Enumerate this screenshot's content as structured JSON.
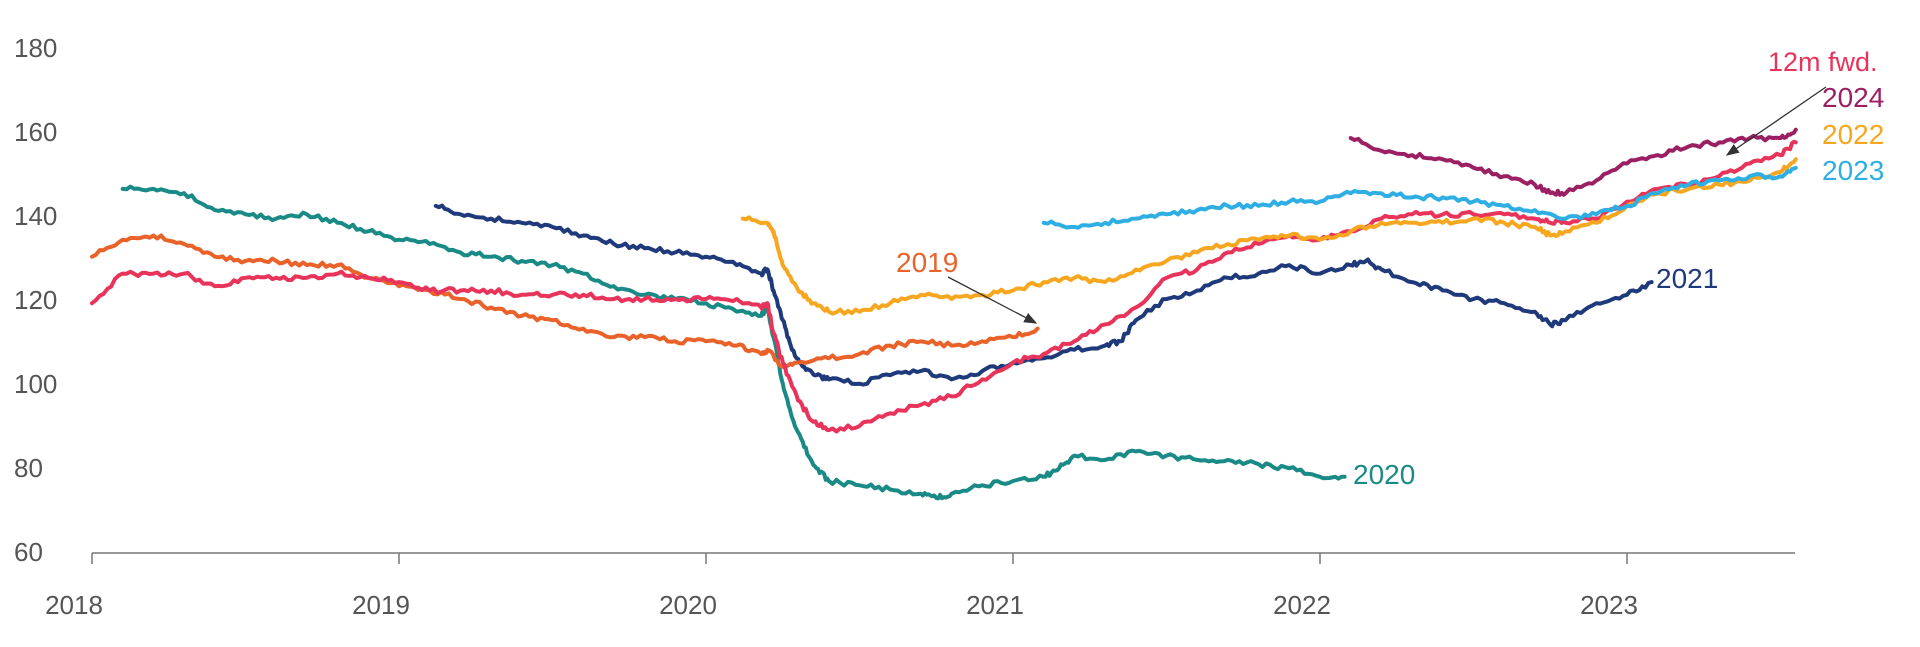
{
  "chart_data": {
    "type": "line",
    "title": "",
    "xlabel": "",
    "ylabel": "",
    "xlim": [
      2018.0,
      2023.55
    ],
    "ylim": [
      60,
      180
    ],
    "grid": false,
    "x_ticks": [
      2018,
      2019,
      2020,
      2021,
      2022,
      2023
    ],
    "x_tick_labels": [
      "2018",
      "2019",
      "2020",
      "2021",
      "2022",
      "2023"
    ],
    "y_ticks": [
      60,
      80,
      100,
      120,
      140,
      160,
      180
    ],
    "y_tick_labels": [
      "60",
      "80",
      "100",
      "120",
      "140",
      "160",
      "180"
    ],
    "series": [
      {
        "name": "2020",
        "label": "2020",
        "color": "#1a8a86",
        "x": [
          2018.1,
          2018.2,
          2018.3,
          2018.4,
          2018.5,
          2018.6,
          2018.7,
          2018.8,
          2018.9,
          2019.0,
          2019.1,
          2019.2,
          2019.3,
          2019.4,
          2019.5,
          2019.6,
          2019.7,
          2019.8,
          2019.9,
          2020.0,
          2020.1,
          2020.18,
          2020.2,
          2020.22,
          2020.25,
          2020.28,
          2020.32,
          2020.36,
          2020.4,
          2020.5,
          2020.6,
          2020.7,
          2020.75,
          2020.8,
          2020.9,
          2021.0,
          2021.1,
          2021.15,
          2021.2,
          2021.3,
          2021.4,
          2021.5,
          2021.6,
          2021.7,
          2021.8,
          2021.9,
          2022.0,
          2022.08
        ],
        "y": [
          146,
          146,
          145,
          141,
          140,
          139,
          140,
          138,
          136,
          134,
          133,
          131,
          130,
          129,
          128,
          126,
          123,
          121,
          120,
          119,
          117,
          116,
          118,
          111,
          100,
          92,
          85,
          80,
          77,
          76,
          75,
          74,
          73,
          74,
          76,
          77,
          78,
          80,
          83,
          82,
          84,
          83,
          82,
          82,
          81,
          80,
          78,
          78
        ]
      },
      {
        "name": "2021",
        "label": "2021",
        "color": "#1f3a7a",
        "x": [
          2019.12,
          2019.2,
          2019.3,
          2019.4,
          2019.5,
          2019.6,
          2019.7,
          2019.8,
          2019.9,
          2020.0,
          2020.1,
          2020.18,
          2020.2,
          2020.22,
          2020.25,
          2020.28,
          2020.32,
          2020.36,
          2020.4,
          2020.5,
          2020.6,
          2020.7,
          2020.8,
          2020.9,
          2021.0,
          2021.1,
          2021.2,
          2021.3,
          2021.35,
          2021.4,
          2021.5,
          2021.6,
          2021.7,
          2021.8,
          2021.9,
          2022.0,
          2022.1,
          2022.15,
          2022.2,
          2022.3,
          2022.4,
          2022.5,
          2022.6,
          2022.7,
          2022.75,
          2022.8,
          2022.9,
          2023.0,
          2023.08
        ],
        "y": [
          142,
          140,
          139,
          138,
          137,
          135,
          133,
          132,
          131,
          130,
          128,
          126,
          127,
          122,
          115,
          108,
          104,
          102,
          101,
          100,
          102,
          103,
          101,
          103,
          105,
          106,
          108,
          109,
          110,
          115,
          120,
          122,
          125,
          126,
          128,
          126,
          128,
          129,
          127,
          124,
          122,
          120,
          119,
          117,
          114,
          115,
          119,
          121,
          124
        ]
      },
      {
        "name": "2019",
        "label": "2019",
        "color": "#e8622a",
        "x": [
          2018.0,
          2018.1,
          2018.2,
          2018.3,
          2018.4,
          2018.5,
          2018.6,
          2018.7,
          2018.8,
          2018.9,
          2019.0,
          2019.1,
          2019.2,
          2019.3,
          2019.4,
          2019.5,
          2019.6,
          2019.7,
          2019.8,
          2019.9,
          2020.0,
          2020.1,
          2020.18,
          2020.2,
          2020.25,
          2020.3,
          2020.4,
          2020.5,
          2020.6,
          2020.7,
          2020.8,
          2020.9,
          2021.0,
          2021.08
        ],
        "y": [
          130,
          134,
          135,
          133,
          130,
          129,
          129,
          128,
          128,
          125,
          123,
          122,
          120,
          118,
          116,
          115,
          113,
          111,
          111,
          110,
          110,
          109,
          107,
          108,
          104,
          105,
          106,
          107,
          109,
          110,
          109,
          110,
          111,
          113
        ]
      },
      {
        "name": "12m fwd.",
        "label": "12m fwd.",
        "color": "#e8345a",
        "x": [
          2018.0,
          2018.1,
          2018.2,
          2018.3,
          2018.4,
          2018.5,
          2018.6,
          2018.7,
          2018.8,
          2018.9,
          2019.0,
          2019.1,
          2019.2,
          2019.3,
          2019.4,
          2019.5,
          2019.6,
          2019.7,
          2019.8,
          2019.9,
          2020.0,
          2020.1,
          2020.18,
          2020.2,
          2020.22,
          2020.25,
          2020.3,
          2020.35,
          2020.4,
          2020.5,
          2020.6,
          2020.7,
          2020.8,
          2020.9,
          2021.0,
          2021.1,
          2021.2,
          2021.3,
          2021.4,
          2021.5,
          2021.6,
          2021.7,
          2021.8,
          2021.9,
          2022.0,
          2022.1,
          2022.2,
          2022.3,
          2022.4,
          2022.5,
          2022.6,
          2022.7,
          2022.75,
          2022.8,
          2022.9,
          2023.0,
          2023.1,
          2023.2,
          2023.3,
          2023.4,
          2023.5,
          2023.55
        ],
        "y": [
          119,
          126,
          126,
          126,
          123,
          125,
          125,
          125,
          126,
          125,
          124,
          122,
          122,
          122,
          121,
          121,
          121,
          120,
          120,
          120,
          120,
          120,
          118,
          119,
          112,
          105,
          96,
          91,
          89,
          90,
          93,
          95,
          97,
          101,
          105,
          107,
          110,
          114,
          118,
          125,
          127,
          131,
          133,
          135,
          134,
          136,
          139,
          140,
          140,
          140,
          140,
          139,
          138,
          138,
          139,
          143,
          146,
          147,
          149,
          152,
          154,
          157
        ]
      },
      {
        "name": "2022",
        "label": "2022",
        "color": "#f6a71f",
        "x": [
          2020.12,
          2020.2,
          2020.22,
          2020.25,
          2020.3,
          2020.35,
          2020.4,
          2020.5,
          2020.6,
          2020.7,
          2020.8,
          2020.9,
          2021.0,
          2021.1,
          2021.2,
          2021.3,
          2021.4,
          2021.5,
          2021.6,
          2021.7,
          2021.8,
          2021.9,
          2022.0,
          2022.1,
          2022.2,
          2022.3,
          2022.4,
          2022.5,
          2022.6,
          2022.7,
          2022.75,
          2022.8,
          2022.9,
          2023.0,
          2023.1,
          2023.2,
          2023.3,
          2023.4,
          2023.5,
          2023.55
        ],
        "y": [
          139,
          138,
          136,
          128,
          122,
          119,
          117,
          117,
          119,
          121,
          120,
          121,
          122,
          124,
          125,
          124,
          127,
          129,
          131,
          133,
          134,
          135,
          134,
          136,
          138,
          138,
          138,
          139,
          138,
          137,
          135,
          136,
          138,
          142,
          145,
          146,
          147,
          148,
          150,
          153
        ]
      },
      {
        "name": "2023",
        "label": "2023",
        "color": "#2eaee3",
        "x": [
          2021.1,
          2021.2,
          2021.3,
          2021.4,
          2021.5,
          2021.6,
          2021.7,
          2021.8,
          2021.9,
          2022.0,
          2022.1,
          2022.2,
          2022.3,
          2022.4,
          2022.5,
          2022.6,
          2022.7,
          2022.8,
          2022.9,
          2023.0,
          2023.1,
          2023.2,
          2023.3,
          2023.4,
          2023.5,
          2023.55
        ],
        "y": [
          138,
          137,
          138,
          139,
          140,
          141,
          142,
          142,
          143,
          143,
          145,
          145,
          144,
          144,
          143,
          142,
          141,
          139,
          140,
          142,
          145,
          147,
          148,
          149,
          149,
          151
        ]
      },
      {
        "name": "2024",
        "label": "2024",
        "color": "#9b2063",
        "x": [
          2022.1,
          2022.2,
          2022.3,
          2022.4,
          2022.5,
          2022.6,
          2022.7,
          2022.75,
          2022.8,
          2022.9,
          2023.0,
          2023.1,
          2023.2,
          2023.3,
          2023.4,
          2023.5,
          2023.55
        ],
        "y": [
          158,
          155,
          154,
          153,
          151,
          149,
          147,
          145,
          145,
          148,
          152,
          154,
          156,
          157,
          158,
          158,
          160
        ]
      }
    ],
    "annotations": [
      {
        "text": "12m fwd.",
        "color": "#e8345a",
        "arrow_to": [
          2023.3,
          152
        ]
      },
      {
        "text": "2019",
        "color": "#e8622a",
        "arrow_to": [
          2021.08,
          113
        ]
      }
    ]
  }
}
